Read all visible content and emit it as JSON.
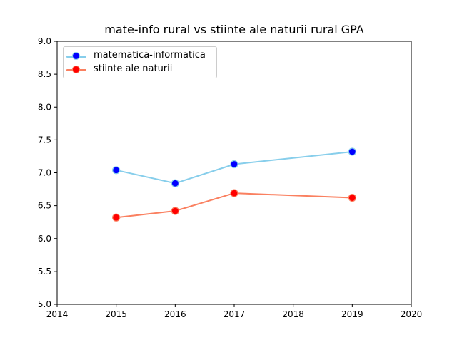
{
  "chart_data": {
    "type": "line",
    "title": "mate-info rural vs stiinte ale naturii rural GPA",
    "xlabel": "",
    "ylabel": "",
    "xlim": [
      2014,
      2020
    ],
    "ylim": [
      5.0,
      9.0
    ],
    "xticks": [
      "2014",
      "2015",
      "2016",
      "2017",
      "2018",
      "2019",
      "2020"
    ],
    "yticks": [
      "5.0",
      "5.5",
      "6.0",
      "6.5",
      "7.0",
      "7.5",
      "8.0",
      "8.5",
      "9.0"
    ],
    "grid": false,
    "legend_position": "upper-left",
    "x": [
      2015,
      2016,
      2017,
      2019
    ],
    "series": [
      {
        "name": "matematica-informatica",
        "values": [
          7.04,
          6.84,
          7.13,
          7.32
        ],
        "line_color": "#87ceeb",
        "marker_color": "#0000ff"
      },
      {
        "name": "stiinte ale naturii",
        "values": [
          6.32,
          6.42,
          6.69,
          6.62
        ],
        "line_color": "#fa8060",
        "marker_color": "#ff0000"
      }
    ]
  }
}
